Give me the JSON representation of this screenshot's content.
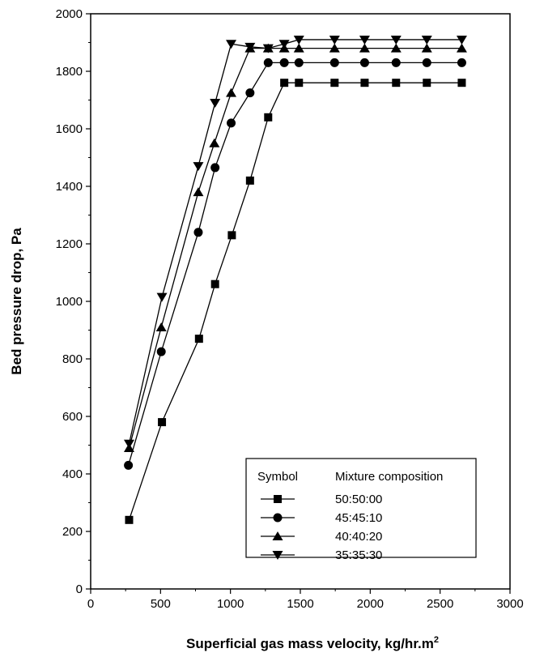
{
  "chart_data": {
    "type": "line",
    "title": "",
    "xlabel": "Superficial gas mass velocity, kg/hr.m",
    "xlabel_superscript": "2",
    "ylabel": "Bed pressure drop, Pa",
    "xlim": [
      0,
      3000
    ],
    "ylim": [
      0,
      2000
    ],
    "xticks": [
      0,
      500,
      1000,
      1500,
      2000,
      2500,
      3000
    ],
    "yticks": [
      0,
      200,
      400,
      600,
      800,
      1000,
      1200,
      1400,
      1600,
      1800,
      2000
    ],
    "grid": false,
    "legend_position": "bottom-right",
    "legend_headers": {
      "symbol": "Symbol",
      "label": "Mixture composition"
    },
    "series": [
      {
        "name": "50:50:00",
        "marker": "square",
        "x": [
          275,
          510,
          775,
          890,
          1010,
          1140,
          1270,
          1385,
          1490,
          1745,
          1960,
          2185,
          2405,
          2655
        ],
        "y": [
          240,
          580,
          870,
          1060,
          1230,
          1420,
          1640,
          1760,
          1760,
          1760,
          1760,
          1760,
          1760,
          1760
        ]
      },
      {
        "name": "45:45:10",
        "marker": "circle",
        "x": [
          270,
          505,
          770,
          890,
          1005,
          1140,
          1270,
          1385,
          1490,
          1745,
          1960,
          2185,
          2405,
          2655
        ],
        "y": [
          430,
          825,
          1240,
          1465,
          1620,
          1725,
          1830,
          1830,
          1830,
          1830,
          1830,
          1830,
          1830,
          1830
        ]
      },
      {
        "name": "40:40:20",
        "marker": "triangle-up",
        "x": [
          275,
          505,
          770,
          885,
          1005,
          1140,
          1270,
          1385,
          1490,
          1745,
          1960,
          2185,
          2405,
          2655
        ],
        "y": [
          490,
          910,
          1380,
          1550,
          1725,
          1880,
          1880,
          1880,
          1880,
          1880,
          1880,
          1880,
          1880,
          1880
        ]
      },
      {
        "name": "35:35:30",
        "marker": "triangle-down",
        "x": [
          275,
          510,
          770,
          890,
          1005,
          1140,
          1270,
          1385,
          1490,
          1745,
          1960,
          2185,
          2405,
          2655
        ],
        "y": [
          505,
          1015,
          1470,
          1690,
          1895,
          1885,
          1880,
          1895,
          1910,
          1910,
          1910,
          1910,
          1910,
          1910
        ]
      }
    ]
  }
}
